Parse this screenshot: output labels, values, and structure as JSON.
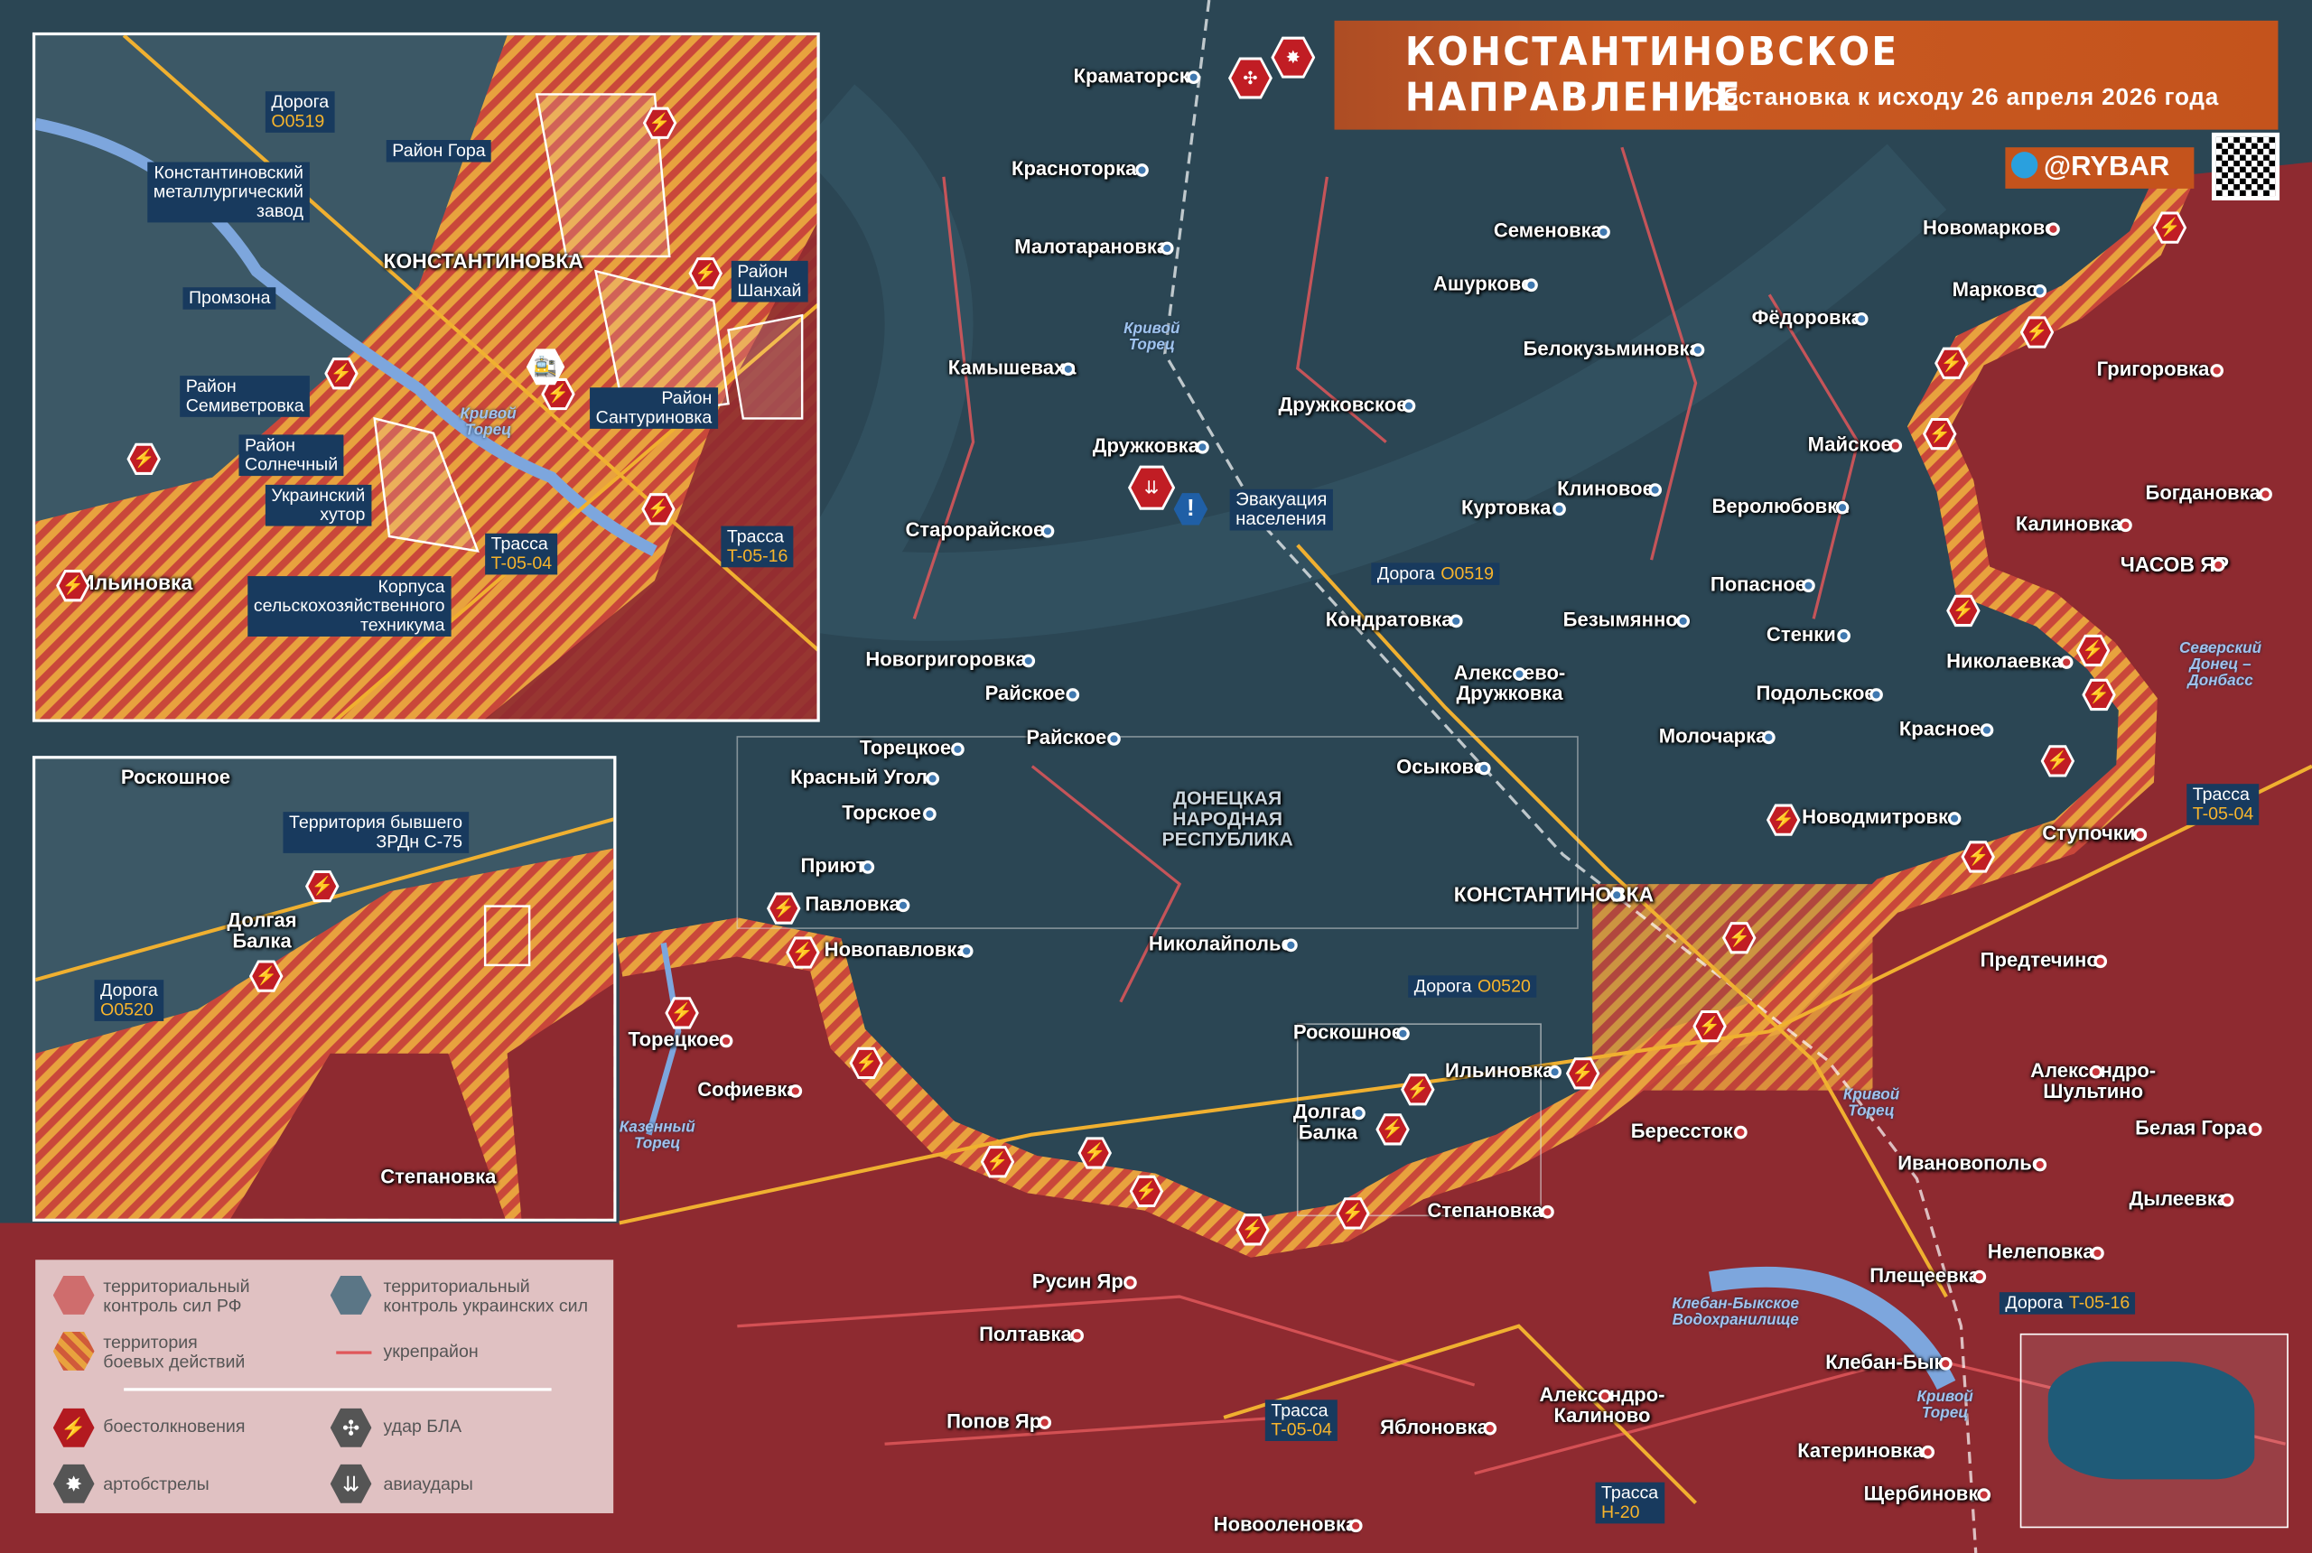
{
  "header": {
    "title": "КОНСТАНТИНОВСКОЕ НАПРАВЛЕНИЕ",
    "subtitle": "Обстановка к исходу 26 апреля 2026 года",
    "brand": "@RYBAR",
    "brand_icon": "telegram-icon",
    "qr_icon": "qr-code-icon"
  },
  "colors": {
    "rf_control": "#8e2a30",
    "ua_control": "#2b4654",
    "combat_zone": "#e59a3a",
    "fortification": "#e0575a",
    "callout": "#183a5e",
    "road_code": "#f7b42c",
    "accent": "#c4531c"
  },
  "main_map": {
    "region_label": "ДОНЕЦКАЯ\nНАРОДНАЯ\nРЕСПУБЛИКА",
    "settlements": [
      {
        "name": "Краматорск",
        "side": "ua"
      },
      {
        "name": "Красноторка",
        "side": "ua"
      },
      {
        "name": "Малотарановка",
        "side": "ua"
      },
      {
        "name": "Камышеваха",
        "side": "ua"
      },
      {
        "name": "Дружковка",
        "side": "ua"
      },
      {
        "name": "Старорайское",
        "side": "ua"
      },
      {
        "name": "Новогригоровка",
        "side": "ua"
      },
      {
        "name": "Райское",
        "side": "ua"
      },
      {
        "name": "Райское",
        "side": "ua"
      },
      {
        "name": "Торецкое",
        "side": "ua"
      },
      {
        "name": "Красный Угол",
        "side": "ua"
      },
      {
        "name": "Торское",
        "side": "ua"
      },
      {
        "name": "Приют",
        "side": "ua"
      },
      {
        "name": "Павловка",
        "side": "ua"
      },
      {
        "name": "Новопавловка",
        "side": "ua"
      },
      {
        "name": "Николайполье",
        "side": "ua"
      },
      {
        "name": "Семеновка",
        "side": "ua"
      },
      {
        "name": "Ашурково",
        "side": "ua"
      },
      {
        "name": "Фёдоровка",
        "side": "ua"
      },
      {
        "name": "Белокузьминовка",
        "side": "ua"
      },
      {
        "name": "Дружковское",
        "side": "ua"
      },
      {
        "name": "Клиновое",
        "side": "ua"
      },
      {
        "name": "Куртовка",
        "side": "ua"
      },
      {
        "name": "Веролюбовка",
        "side": "ua"
      },
      {
        "name": "Попасное",
        "side": "ua"
      },
      {
        "name": "Кондратовка",
        "side": "ua"
      },
      {
        "name": "Безымянное",
        "side": "ua"
      },
      {
        "name": "Стенки",
        "side": "ua"
      },
      {
        "name": "Алексеево-\nДружковка",
        "side": "ua"
      },
      {
        "name": "Подольское",
        "side": "ua"
      },
      {
        "name": "Красное",
        "side": "ua"
      },
      {
        "name": "Молочарка",
        "side": "ua"
      },
      {
        "name": "Осыково",
        "side": "ua"
      },
      {
        "name": "Новодмитровка",
        "side": "ua"
      },
      {
        "name": "КОНСТАНТИНОВКА",
        "side": "ua"
      },
      {
        "name": "Роскошное",
        "side": "ua"
      },
      {
        "name": "Ильиновка",
        "side": "ua"
      },
      {
        "name": "Долгая\nБалка",
        "side": "ua"
      },
      {
        "name": "Берессток",
        "side": "ru"
      },
      {
        "name": "Степановка",
        "side": "ru"
      },
      {
        "name": "Торецкое",
        "side": "ru"
      },
      {
        "name": "Софиевка",
        "side": "ru"
      },
      {
        "name": "Русин Яр",
        "side": "ru"
      },
      {
        "name": "Полтавка",
        "side": "ru"
      },
      {
        "name": "Попов Яр",
        "side": "ru"
      },
      {
        "name": "Яблоновка",
        "side": "ru"
      },
      {
        "name": "Александро-\nКалиново",
        "side": "ru"
      },
      {
        "name": "Новооленовка",
        "side": "ru"
      },
      {
        "name": "Новомарково",
        "side": "ru"
      },
      {
        "name": "Марково",
        "side": "ua"
      },
      {
        "name": "Григоровка",
        "side": "ru"
      },
      {
        "name": "Майское",
        "side": "ru"
      },
      {
        "name": "Богдановка",
        "side": "ru"
      },
      {
        "name": "Калиновка",
        "side": "ru"
      },
      {
        "name": "ЧАСОВ ЯР",
        "side": "ru"
      },
      {
        "name": "Николаевка",
        "side": "ru"
      },
      {
        "name": "Ступочки",
        "side": "ru"
      },
      {
        "name": "Предтечино",
        "side": "ru"
      },
      {
        "name": "Александро-\nШультино",
        "side": "ru"
      },
      {
        "name": "Белая Гора",
        "side": "ru"
      },
      {
        "name": "Ивановополье",
        "side": "ru"
      },
      {
        "name": "Дылеевка",
        "side": "ru"
      },
      {
        "name": "Нелеповка",
        "side": "ru"
      },
      {
        "name": "Плещеевка",
        "side": "ru"
      },
      {
        "name": "Клебан-Бык",
        "side": "ru"
      },
      {
        "name": "Катериновка",
        "side": "ru"
      },
      {
        "name": "Щербиновка",
        "side": "ru"
      }
    ],
    "roads": [
      {
        "type": "Дорога",
        "code": "O0519"
      },
      {
        "type": "Дорога",
        "code": "O0520"
      },
      {
        "type": "Трасса",
        "code": "T-05-04"
      },
      {
        "type": "Дорога",
        "code": "T-05-16"
      },
      {
        "type": "Трасса",
        "code": "T-05-04"
      },
      {
        "type": "Трасса",
        "code": "H-20"
      }
    ],
    "rivers": [
      "Кривой\nТорец",
      "Кривой\nТорец",
      "Кривой\nТорец",
      "Казенный\nТорец",
      "Клебан-Быкское\nВодохранилище",
      "Северский\nДонец –\nДонбасс"
    ],
    "evacuation": {
      "label": "Эвакуация\nнаселения",
      "icon": "exclamation-icon"
    }
  },
  "inset_konstantinovka": {
    "city": "КОНСТАНТИНОВКА",
    "labels": [
      {
        "text": "Дорога",
        "code": "O0519"
      },
      {
        "text": "Район Гора"
      },
      {
        "text": "Константиновский\nметаллургический\nзавод"
      },
      {
        "text": "Промзона"
      },
      {
        "text": "Район\nШанхай"
      },
      {
        "text": "Район\nСемиветровка"
      },
      {
        "text": "Район\nСолнечный"
      },
      {
        "text": "Район\nСантуриновка"
      },
      {
        "text": "Украинский\nхутор"
      },
      {
        "text": "Трасса",
        "code": "T-05-04"
      },
      {
        "text": "Трасса",
        "code": "T-05-16"
      },
      {
        "text": "Корпуса\nсельскохозяйственного\nтехникума"
      }
    ],
    "settlement": "Ильиновка",
    "river": "Кривой\nТорец"
  },
  "inset_dolgaya_balka": {
    "settlements": [
      "Роскошное",
      "Долгая\nБалка",
      "Степановка"
    ],
    "labels": [
      {
        "text": "Территория бывшего\nЗРДн С-75"
      },
      {
        "text": "Дорога",
        "code": "O0520"
      }
    ]
  },
  "legend": {
    "items": [
      {
        "label": "территориальный\nконтроль сил РФ",
        "icon": "rf-control-hex-icon"
      },
      {
        "label": "территориальный\nконтроль украинских сил",
        "icon": "ua-control-hex-icon"
      },
      {
        "label": "территория\nбоевых действий",
        "icon": "combat-zone-hex-icon"
      },
      {
        "label": "укрепрайон",
        "icon": "fortification-line-icon"
      },
      {
        "label": "боестолкновения",
        "icon": "clash-icon"
      },
      {
        "label": "удар БЛА",
        "icon": "drone-strike-icon"
      },
      {
        "label": "артобстрелы",
        "icon": "artillery-icon"
      },
      {
        "label": "авиаудары",
        "icon": "airstrike-icon"
      }
    ]
  }
}
